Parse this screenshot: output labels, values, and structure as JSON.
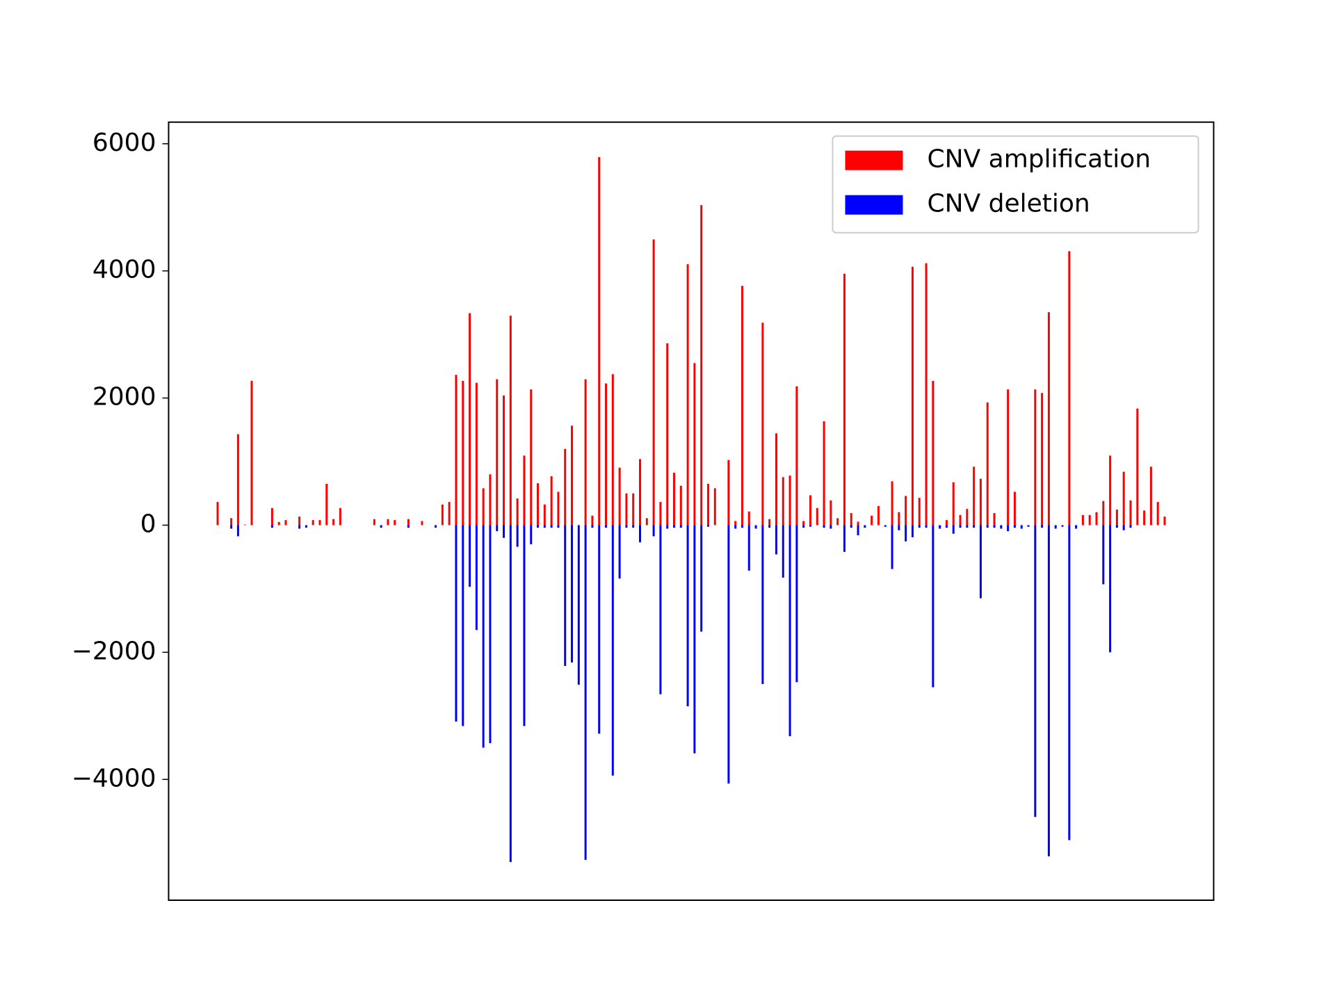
{
  "chart_data": {
    "type": "bar",
    "categories": [
      null,
      null,
      null,
      null,
      null,
      null,
      null,
      null,
      null,
      null,
      null,
      null,
      null,
      null,
      null,
      null,
      null,
      null,
      null,
      null,
      null,
      null,
      null,
      null,
      null,
      null,
      null,
      null,
      null,
      null,
      null,
      null,
      null,
      null,
      null,
      null,
      null,
      null,
      null,
      null,
      null,
      null,
      null,
      null,
      null,
      null,
      null,
      null,
      null,
      null,
      null,
      null,
      null,
      null,
      null,
      null,
      null,
      null,
      null,
      null,
      null,
      null,
      null,
      null,
      null,
      null,
      null,
      null,
      null,
      null,
      null,
      null,
      null,
      null,
      null,
      null,
      null,
      null,
      null,
      null,
      null,
      null,
      null,
      null,
      null,
      null,
      null,
      null,
      null,
      null,
      null,
      null,
      null,
      null,
      null,
      null,
      null,
      null,
      null,
      null,
      null,
      null,
      null,
      null,
      null,
      null,
      null,
      null,
      null,
      null,
      null,
      null,
      null,
      null,
      null,
      null,
      null,
      null,
      null,
      null,
      null,
      null,
      null,
      null,
      null,
      null,
      null,
      null,
      null,
      null,
      null,
      null,
      null,
      null,
      null,
      null,
      null,
      null,
      null,
      null
    ],
    "series": [
      {
        "name": "CNV amplification",
        "color": "#ff0000",
        "values": [
          365,
          0,
          110,
          1430,
          10,
          2270,
          0,
          0,
          270,
          50,
          80,
          0,
          135,
          0,
          80,
          80,
          650,
          95,
          270,
          0,
          0,
          0,
          0,
          95,
          0,
          95,
          80,
          0,
          95,
          0,
          65,
          0,
          0,
          325,
          365,
          2365,
          2270,
          3335,
          2240,
          580,
          800,
          2295,
          2040,
          3295,
          420,
          1095,
          2135,
          660,
          325,
          770,
          525,
          1200,
          1565,
          0,
          2295,
          150,
          5790,
          2230,
          2375,
          905,
          500,
          500,
          1040,
          110,
          4495,
          365,
          2860,
          825,
          620,
          4105,
          2550,
          5035,
          650,
          580,
          0,
          1025,
          65,
          3765,
          215,
          0,
          3185,
          95,
          1445,
          755,
          780,
          2185,
          65,
          470,
          270,
          1635,
          390,
          110,
          3955,
          190,
          55,
          0,
          150,
          300,
          0,
          690,
          205,
          460,
          4065,
          430,
          4120,
          2270,
          0,
          80,
          675,
          160,
          255,
          920,
          730,
          1930,
          190,
          0,
          2135,
          525,
          0,
          0,
          2135,
          2080,
          3350,
          0,
          0,
          4310,
          0,
          160,
          160,
          205,
          380,
          1095,
          245,
          840,
          390,
          1835,
          230,
          920,
          365,
          135
        ]
      },
      {
        "name": "CNV deletion",
        "color": "#0000ff",
        "values": [
          0,
          0,
          -55,
          -175,
          0,
          0,
          0,
          0,
          -40,
          0,
          0,
          0,
          -55,
          -40,
          0,
          0,
          0,
          0,
          0,
          0,
          0,
          0,
          0,
          0,
          -40,
          0,
          0,
          0,
          -40,
          0,
          0,
          0,
          -40,
          0,
          0,
          -3090,
          -3160,
          -970,
          -1650,
          -3500,
          -3430,
          -95,
          -200,
          -5300,
          -340,
          -3160,
          -300,
          -40,
          -40,
          -40,
          -40,
          -2215,
          -2160,
          -2510,
          -5265,
          -40,
          -3280,
          -40,
          -3940,
          -840,
          -40,
          -40,
          -270,
          0,
          -175,
          -2660,
          -55,
          -40,
          -40,
          -2850,
          -3590,
          -1675,
          -25,
          0,
          0,
          -4065,
          -55,
          -40,
          -715,
          -55,
          -2500,
          -40,
          -460,
          -825,
          -3320,
          -2470,
          -40,
          -25,
          0,
          -40,
          -55,
          0,
          -420,
          -40,
          -160,
          -40,
          0,
          0,
          -25,
          -690,
          -80,
          -255,
          -190,
          -40,
          -40,
          -2550,
          -55,
          -40,
          -135,
          -40,
          -40,
          -40,
          -1150,
          -40,
          -40,
          -55,
          -95,
          -40,
          -55,
          -25,
          -4590,
          -40,
          -5210,
          -55,
          -25,
          -4955,
          -55,
          0,
          0,
          0,
          -930,
          -2000,
          -40,
          -80,
          -40,
          0,
          0,
          0,
          0,
          0
        ]
      }
    ],
    "ylim": [
      -5900,
      6340
    ],
    "yticks": [
      {
        "value": -4000,
        "label": "−4000"
      },
      {
        "value": -2000,
        "label": "−2000"
      },
      0,
      2000,
      4000,
      6000
    ],
    "legend": "upper right"
  }
}
